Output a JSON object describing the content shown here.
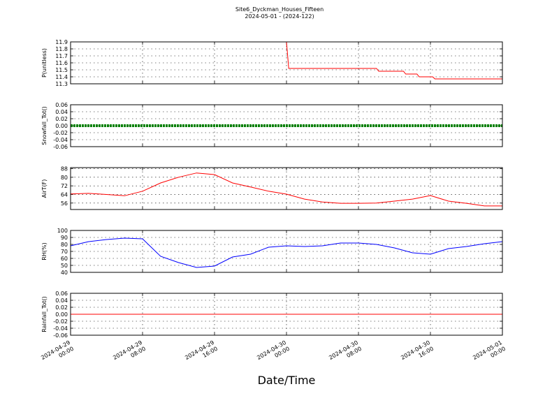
{
  "chart_data": [
    {
      "type": "line",
      "title": "Site6_Dyckman_Houses_Fifteen",
      "subtitle": "2024-05-01 - (2024-122)",
      "ylabel": "P(unitless)",
      "x": [
        "2024-04-29 00:00",
        "2024-04-30 00:00",
        "2024-04-30 00:15",
        "2024-04-30 10:00",
        "2024-04-30 10:15",
        "2024-04-30 13:00",
        "2024-04-30 13:15",
        "2024-04-30 14:30",
        "2024-04-30 14:45",
        "2024-04-30 16:15",
        "2024-04-30 16:30",
        "2024-05-01 00:00"
      ],
      "series": [
        {
          "name": "P",
          "color": "#ff0000",
          "values": [
            11.9,
            11.9,
            11.52,
            11.52,
            11.48,
            11.48,
            11.44,
            11.44,
            11.4,
            11.4,
            11.37,
            11.37
          ]
        }
      ],
      "ylim": [
        11.3,
        11.9
      ],
      "yticks": [
        11.3,
        11.4,
        11.5,
        11.6,
        11.7,
        11.8,
        11.9
      ],
      "grid": true
    },
    {
      "type": "line",
      "ylabel": "Snowfall_Tot()",
      "marker": true,
      "x": [
        "2024-04-29 00:00",
        "2024-05-01 00:00"
      ],
      "series": [
        {
          "name": "Snowfall_Tot",
          "color": "#008000",
          "values": [
            0,
            0
          ]
        }
      ],
      "ylim": [
        -0.06,
        0.06
      ],
      "yticks": [
        {
          "value": -0.06,
          "label": "-0.06"
        },
        {
          "value": -0.04,
          "label": "-0.04"
        },
        {
          "value": -0.02,
          "label": "-0.02"
        },
        {
          "value": 0,
          "label": "0.00"
        },
        {
          "value": 0.02,
          "label": "0.02"
        },
        {
          "value": 0.04,
          "label": "0.04"
        },
        {
          "value": 0.06,
          "label": "0.06"
        }
      ],
      "grid": true
    },
    {
      "type": "line",
      "ylabel": "AirT(F)",
      "x": [
        "2024-04-29 00:00",
        "2024-04-29 02:00",
        "2024-04-29 04:00",
        "2024-04-29 06:00",
        "2024-04-29 08:00",
        "2024-04-29 10:00",
        "2024-04-29 12:00",
        "2024-04-29 14:00",
        "2024-04-29 16:00",
        "2024-04-29 18:00",
        "2024-04-29 20:00",
        "2024-04-29 22:00",
        "2024-04-30 00:00",
        "2024-04-30 02:00",
        "2024-04-30 04:00",
        "2024-04-30 06:00",
        "2024-04-30 08:00",
        "2024-04-30 10:00",
        "2024-04-30 12:00",
        "2024-04-30 14:00",
        "2024-04-30 16:00",
        "2024-04-30 18:00",
        "2024-04-30 20:00",
        "2024-04-30 22:00",
        "2024-05-01 00:00"
      ],
      "series": [
        {
          "name": "AirT",
          "color": "#ff0000",
          "values": [
            64.5,
            65,
            64,
            62.8,
            67,
            74.7,
            80,
            84,
            82.5,
            74.7,
            71,
            67,
            64.3,
            59.7,
            57,
            55.8,
            55.8,
            56,
            57.8,
            59.7,
            63,
            57.8,
            55.8,
            53.3,
            53.3
          ]
        }
      ],
      "ylim": [
        50,
        89
      ],
      "yticks": [
        56,
        64,
        72,
        80,
        88
      ],
      "grid": true
    },
    {
      "type": "line",
      "ylabel": "RH(%)",
      "x": [
        "2024-04-29 00:00",
        "2024-04-29 02:00",
        "2024-04-29 04:00",
        "2024-04-29 06:00",
        "2024-04-29 08:00",
        "2024-04-29 10:00",
        "2024-04-29 12:00",
        "2024-04-29 14:00",
        "2024-04-29 16:00",
        "2024-04-29 18:00",
        "2024-04-29 20:00",
        "2024-04-29 22:00",
        "2024-04-30 00:00",
        "2024-04-30 02:00",
        "2024-04-30 04:00",
        "2024-04-30 06:00",
        "2024-04-30 08:00",
        "2024-04-30 10:00",
        "2024-04-30 12:00",
        "2024-04-30 14:00",
        "2024-04-30 16:00",
        "2024-04-30 18:00",
        "2024-04-30 20:00",
        "2024-04-30 22:00",
        "2024-05-01 00:00"
      ],
      "series": [
        {
          "name": "RH",
          "color": "#0000ff",
          "values": [
            78,
            84,
            87,
            89,
            88,
            63,
            54,
            47,
            49,
            62,
            66,
            76,
            78,
            77,
            78,
            82,
            82,
            80,
            75,
            68,
            66,
            74,
            77,
            81,
            84
          ]
        }
      ],
      "ylim": [
        40,
        100
      ],
      "yticks": [
        40,
        50,
        60,
        70,
        80,
        90,
        100
      ],
      "grid": true
    },
    {
      "type": "line",
      "ylabel": "Rainfall_Tot()",
      "xlabel": "Date/Time",
      "x": [
        "2024-04-29 00:00",
        "2024-05-01 00:00"
      ],
      "series": [
        {
          "name": "Rainfall_Tot",
          "color": "#ff0000",
          "values": [
            0,
            0
          ]
        }
      ],
      "ylim": [
        -0.06,
        0.06
      ],
      "yticks": [
        {
          "value": -0.06,
          "label": "-0.06"
        },
        {
          "value": -0.04,
          "label": "-0.04"
        },
        {
          "value": -0.02,
          "label": "-0.02"
        },
        {
          "value": 0,
          "label": "0.00"
        },
        {
          "value": 0.02,
          "label": "0.02"
        },
        {
          "value": 0.04,
          "label": "0.04"
        },
        {
          "value": 0.06,
          "label": "0.06"
        }
      ],
      "grid": true,
      "xlim": [
        "2024-04-29 00:00",
        "2024-05-01 00:00"
      ],
      "xticks": [
        "2024-04-29 00:00",
        "2024-04-29 08:00",
        "2024-04-29 16:00",
        "2024-04-30 00:00",
        "2024-04-30 08:00",
        "2024-04-30 16:00",
        "2024-05-01 00:00"
      ]
    }
  ]
}
